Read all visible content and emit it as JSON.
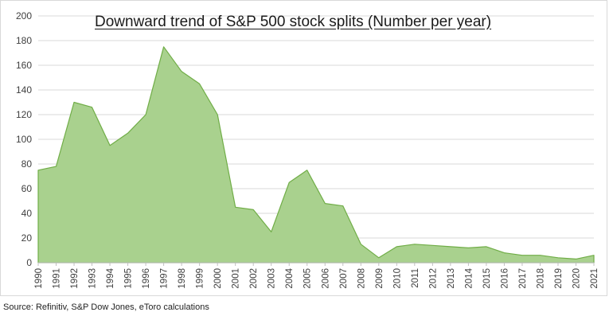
{
  "chart_data": {
    "type": "area",
    "title": "Downward trend of S&P 500 stock splits (Number per year)",
    "source": "Source: Refinitiv, S&P Dow Jones, eToro calculations",
    "x": [
      "1990",
      "1991",
      "1992",
      "1993",
      "1994",
      "1995",
      "1996",
      "1997",
      "1998",
      "1999",
      "2000",
      "2001",
      "2002",
      "2003",
      "2004",
      "2005",
      "2006",
      "2007",
      "2008",
      "2009",
      "2010",
      "2011",
      "2012",
      "2013",
      "2014",
      "2015",
      "2016",
      "2017",
      "2018",
      "2019",
      "2020",
      "2021"
    ],
    "series": [
      {
        "values": [
          75,
          78,
          130,
          126,
          95,
          105,
          120,
          175,
          155,
          145,
          120,
          45,
          43,
          25,
          65,
          75,
          48,
          46,
          15,
          4,
          13,
          15,
          14,
          13,
          12,
          13,
          8,
          6,
          6,
          4,
          3,
          6
        ],
        "fill": "#a9d18e",
        "stroke": "#70ad47"
      }
    ],
    "ylim": [
      0,
      200
    ],
    "yticks": [
      0,
      20,
      40,
      60,
      80,
      100,
      120,
      140,
      160,
      180,
      200
    ],
    "grid": true,
    "gridColor": "#d9d9d9"
  }
}
